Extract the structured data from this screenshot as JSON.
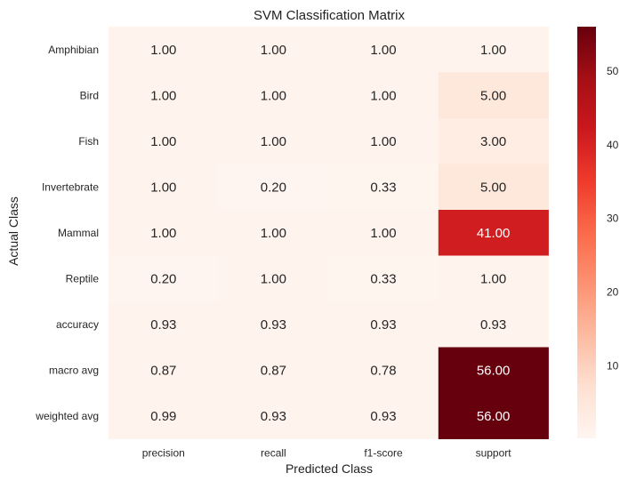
{
  "chart_data": {
    "type": "heatmap",
    "title": "SVM Classification Matrix",
    "xlabel": "Predicted Class",
    "ylabel": "Actual Class",
    "x_categories": [
      "precision",
      "recall",
      "f1-score",
      "support"
    ],
    "y_categories": [
      "Amphibian",
      "Bird",
      "Fish",
      "Invertebrate",
      "Mammal",
      "Reptile",
      "accuracy",
      "macro avg",
      "weighted avg"
    ],
    "values": [
      [
        1.0,
        1.0,
        1.0,
        1.0
      ],
      [
        1.0,
        1.0,
        1.0,
        5.0
      ],
      [
        1.0,
        1.0,
        1.0,
        3.0
      ],
      [
        1.0,
        0.2,
        0.33,
        5.0
      ],
      [
        1.0,
        1.0,
        1.0,
        41.0
      ],
      [
        0.2,
        1.0,
        0.33,
        1.0
      ],
      [
        0.93,
        0.93,
        0.93,
        0.93
      ],
      [
        0.87,
        0.87,
        0.78,
        56.0
      ],
      [
        0.99,
        0.93,
        0.93,
        56.0
      ]
    ],
    "value_format": "0.00",
    "colormap": "Reds",
    "color_range": [
      0.2,
      56
    ],
    "colorbar_ticks": [
      10,
      20,
      30,
      40,
      50
    ],
    "colors": {
      "low": "#fff5f0",
      "high": "#67000d"
    }
  }
}
